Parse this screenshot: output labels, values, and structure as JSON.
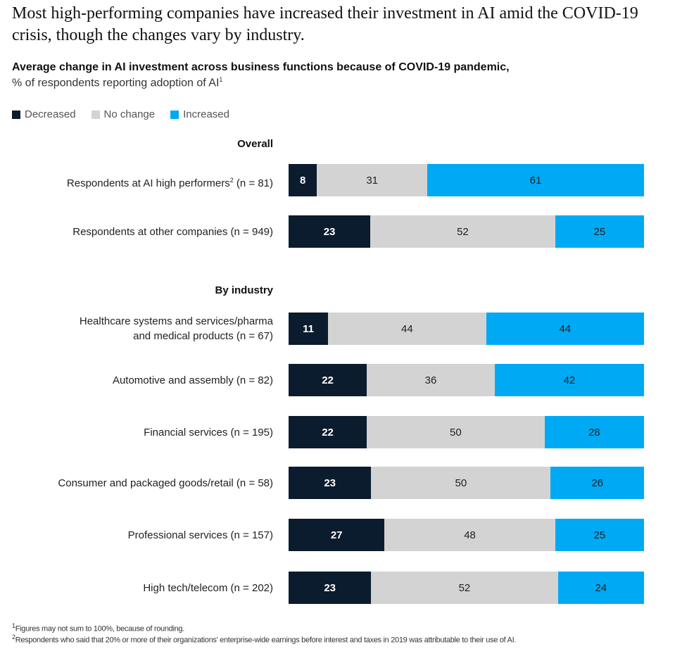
{
  "title": "Most high-performing companies have increased their investment in AI amid the COVID-19 crisis, though the changes vary by industry.",
  "chart_data": {
    "type": "bar",
    "orientation": "horizontal-stacked-100",
    "subtitle": "Average change in AI investment across business functions because of COVID-19 pandemic,",
    "subtitle2": "% of respondents reporting adoption of AI",
    "subtitle2_sup": "1",
    "legend": [
      {
        "name": "Decreased",
        "color": "#0b1c2e"
      },
      {
        "name": "No change",
        "color": "#d3d3d3"
      },
      {
        "name": "Increased",
        "color": "#00a9f4"
      }
    ],
    "legend_placement": "top-left",
    "sections": [
      {
        "heading": "Overall",
        "rows": [
          {
            "label": "Respondents at AI high performers",
            "sup": "2",
            "n": " (n = 81)",
            "values": [
              8,
              31,
              61
            ]
          },
          {
            "label": "Respondents at other companies (n = 949)",
            "values": [
              23,
              52,
              25
            ]
          }
        ]
      },
      {
        "heading": "By industry",
        "rows": [
          {
            "label": "Healthcare systems and services/pharma",
            "label2": "and medical products (n = 67)",
            "values": [
              11,
              44,
              44
            ]
          },
          {
            "label": "Automotive and assembly (n = 82)",
            "values": [
              22,
              36,
              42
            ]
          },
          {
            "label": "Financial services (n = 195)",
            "values": [
              22,
              50,
              28
            ]
          },
          {
            "label": "Consumer and packaged goods/retail (n = 58)",
            "values": [
              23,
              50,
              26
            ]
          },
          {
            "label": "Professional services (n = 157)",
            "values": [
              27,
              48,
              25
            ]
          },
          {
            "label": "High tech/telecom (n = 202)",
            "values": [
              23,
              52,
              24
            ]
          }
        ]
      }
    ]
  },
  "footnotes": [
    {
      "sup": "1",
      "text": "Figures may not sum to 100%, because of rounding."
    },
    {
      "sup": "2",
      "text": "Respondents who said that 20% or more of their organizations' enterprise-wide earnings before interest and taxes in 2019 was attributable to their use of AI."
    }
  ]
}
